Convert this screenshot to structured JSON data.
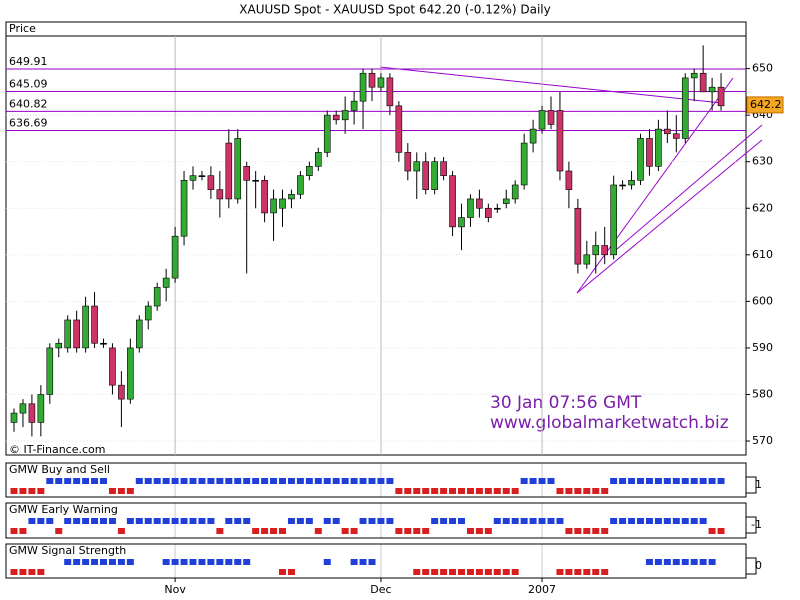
{
  "chart_data": {
    "type": "candlestick",
    "title": "XAUUSD Spot - XAUUSD Spot    642.20 (-0.12%)    Daily",
    "y_label": "Price",
    "source": "© IT-Finance.com",
    "annotations": [
      "30 Jan 07:56 GMT",
      "www.globalmarketwatch.biz"
    ],
    "up_color": "#33aa33",
    "down_color": "#cc3366",
    "last_price": 642.2,
    "levels": [
      649.91,
      645.09,
      640.82,
      636.69
    ],
    "level_color": "#9900cc",
    "ylim": [
      567,
      657
    ],
    "yticks": [
      570,
      580,
      590,
      600,
      610,
      620,
      630,
      640,
      650
    ],
    "grid": true,
    "categories": [
      null,
      null,
      null,
      null,
      null,
      null,
      null,
      null,
      null,
      null,
      null,
      null,
      null,
      null,
      null,
      null,
      null,
      null,
      "Nov",
      null,
      null,
      null,
      null,
      null,
      null,
      null,
      null,
      null,
      null,
      null,
      null,
      null,
      null,
      null,
      null,
      null,
      null,
      null,
      null,
      null,
      null,
      "Dec",
      null,
      null,
      null,
      null,
      null,
      null,
      null,
      null,
      null,
      null,
      null,
      null,
      null,
      null,
      null,
      null,
      null,
      "2007",
      null,
      null,
      null,
      null,
      null,
      null,
      null,
      null,
      null,
      null,
      null,
      null,
      null,
      null,
      null,
      null,
      null,
      null,
      null,
      null
    ],
    "open": [
      574,
      576,
      578,
      574,
      580,
      590,
      590,
      596,
      590,
      599,
      591,
      590,
      582,
      579,
      590,
      596,
      599,
      603,
      605,
      614,
      626,
      627,
      627,
      624,
      634,
      622,
      629,
      626,
      626,
      619,
      620,
      622,
      623,
      627,
      629,
      632,
      640,
      639,
      641,
      643,
      649,
      646,
      648,
      642,
      632,
      628,
      630,
      624,
      630,
      627,
      616,
      618,
      622,
      620,
      620,
      621,
      622,
      625,
      634,
      637,
      641,
      641,
      628,
      620,
      608,
      610,
      612,
      610,
      625,
      625,
      626,
      635,
      629,
      637,
      636,
      635,
      648,
      649,
      645,
      646
    ],
    "high": [
      577,
      579,
      580,
      582,
      591,
      592,
      597,
      598,
      601,
      602,
      592,
      591,
      585,
      592,
      597,
      600,
      604,
      607,
      616,
      628,
      629,
      628,
      629,
      628,
      637,
      637,
      630,
      628,
      627,
      624,
      624,
      624,
      628,
      630,
      633,
      641,
      641,
      644,
      645,
      650,
      650,
      649,
      649,
      643,
      634,
      632,
      632,
      631,
      631,
      628,
      621,
      623,
      624,
      621,
      621,
      624,
      626,
      636,
      639,
      642,
      644,
      645,
      630,
      622,
      613,
      615,
      616,
      627,
      626,
      628,
      636,
      637,
      639,
      641,
      640,
      649,
      650,
      655,
      648,
      649
    ],
    "low": [
      572,
      573,
      571,
      571,
      578,
      588,
      589,
      589,
      589,
      590,
      590,
      580,
      573,
      578,
      589,
      594,
      598,
      600,
      604,
      612,
      624,
      626,
      622,
      618,
      620,
      621,
      606,
      620,
      617,
      613,
      616,
      620,
      622,
      626,
      628,
      631,
      638,
      636,
      638,
      637,
      643,
      645,
      640,
      630,
      626,
      622,
      623,
      623,
      626,
      614,
      611,
      616,
      618,
      617,
      619,
      620,
      621,
      624,
      632,
      636,
      637,
      626,
      620,
      606,
      607,
      606,
      608,
      609,
      624,
      624,
      625,
      627,
      628,
      634,
      632,
      634,
      643,
      645,
      641,
      641
    ],
    "close": [
      576,
      578,
      574,
      580,
      590,
      591,
      596,
      590,
      599,
      591,
      591,
      582,
      579,
      590,
      596,
      599,
      603,
      605,
      614,
      626,
      627,
      627,
      624,
      622,
      622,
      635,
      626,
      626,
      619,
      622,
      622,
      623,
      627,
      629,
      632,
      640,
      639,
      641,
      643,
      649,
      646,
      648,
      642,
      632,
      628,
      630,
      624,
      630,
      627,
      616,
      618,
      622,
      620,
      618,
      620,
      622,
      625,
      634,
      637,
      641,
      638,
      628,
      624,
      608,
      610,
      612,
      610,
      625,
      625,
      626,
      635,
      629,
      637,
      636,
      635,
      648,
      649,
      645,
      646,
      642
    ],
    "indicators": [
      {
        "name": "GMW Buy and Sell",
        "color": "#1a1a8c",
        "current": 1,
        "values": [
          -1,
          -1,
          -1,
          -1,
          1,
          1,
          1,
          1,
          1,
          1,
          1,
          -1,
          -1,
          -1,
          1,
          1,
          1,
          1,
          1,
          1,
          1,
          1,
          1,
          1,
          1,
          1,
          1,
          1,
          1,
          1,
          1,
          1,
          1,
          1,
          1,
          1,
          1,
          1,
          1,
          1,
          1,
          1,
          1,
          -1,
          -1,
          -1,
          -1,
          -1,
          -1,
          -1,
          -1,
          -1,
          -1,
          -1,
          -1,
          -1,
          -1,
          1,
          1,
          1,
          1,
          -1,
          -1,
          -1,
          -1,
          -1,
          -1,
          1,
          1,
          1,
          1,
          1,
          1,
          1,
          1,
          1,
          1,
          1,
          1,
          1
        ]
      },
      {
        "name": "GMW Early Warning",
        "color": "#cc0000",
        "current": -1,
        "values": [
          -1,
          -1,
          1,
          1,
          1,
          -1,
          1,
          1,
          1,
          1,
          1,
          1,
          -1,
          1,
          1,
          1,
          1,
          1,
          1,
          1,
          1,
          1,
          1,
          -1,
          1,
          1,
          1,
          -1,
          -1,
          -1,
          -1,
          1,
          1,
          1,
          -1,
          1,
          1,
          -1,
          -1,
          1,
          1,
          1,
          1,
          -1,
          -1,
          -1,
          -1,
          1,
          1,
          1,
          1,
          -1,
          -1,
          -1,
          1,
          1,
          1,
          1,
          1,
          1,
          1,
          1,
          -1,
          -1,
          -1,
          -1,
          -1,
          1,
          1,
          1,
          1,
          1,
          1,
          1,
          1,
          1,
          1,
          1,
          -1,
          -1
        ]
      },
      {
        "name": "GMW Signal Strength",
        "color": "#1a1a8c",
        "current": 0,
        "values": [
          -1,
          -1,
          -1,
          -1,
          0,
          0,
          1,
          1,
          1,
          1,
          1,
          1,
          1,
          1,
          0,
          0,
          0,
          1,
          1,
          1,
          1,
          1,
          1,
          1,
          1,
          1,
          1,
          0,
          0,
          0,
          -1,
          -1,
          0,
          0,
          0,
          1,
          0,
          0,
          1,
          1,
          1,
          0,
          0,
          0,
          0,
          -1,
          -1,
          -1,
          -1,
          -1,
          -1,
          -1,
          -1,
          -1,
          -1,
          -1,
          -1,
          0,
          0,
          0,
          0,
          -1,
          -1,
          -1,
          -1,
          -1,
          -1,
          0,
          0,
          0,
          0,
          1,
          1,
          1,
          1,
          1,
          1,
          1,
          1,
          0
        ]
      }
    ]
  }
}
